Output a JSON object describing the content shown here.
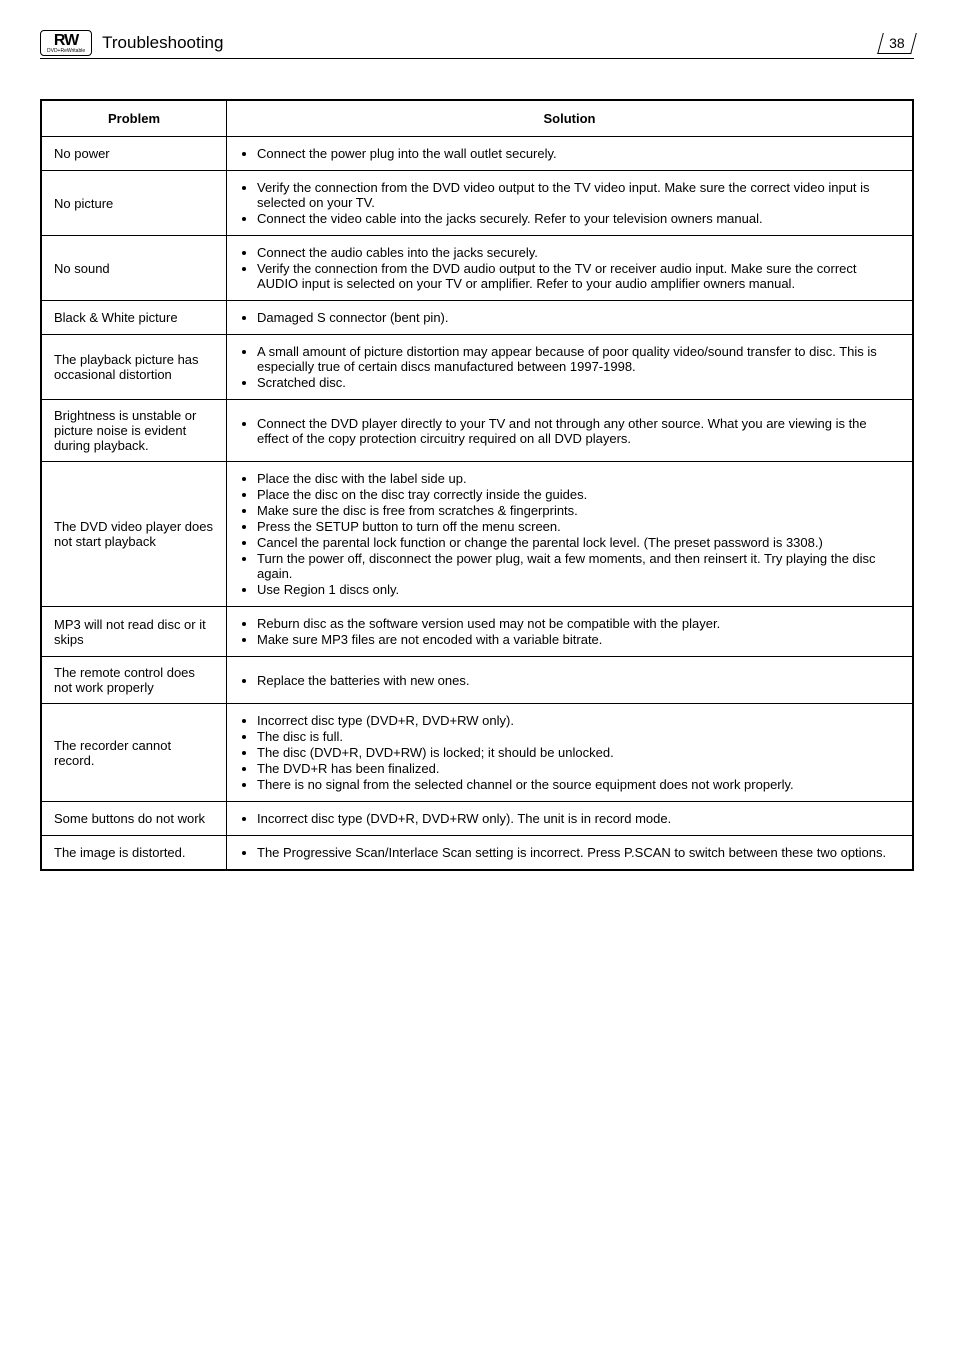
{
  "header": {
    "badge_top": "RW",
    "badge_sub": "DVD+ReWritable",
    "title": "Troubleshooting",
    "page": "38"
  },
  "table": {
    "col_problem": "Problem",
    "col_solution": "Solution",
    "rows": [
      {
        "problem": "No power",
        "solutions": [
          "Connect the power plug into the wall outlet securely."
        ]
      },
      {
        "problem": "No picture",
        "solutions": [
          "Verify the connection from the DVD video output to the TV video input. Make sure the correct video input is selected on your TV.",
          "Connect the video cable into the jacks securely. Refer to your television owners manual."
        ]
      },
      {
        "problem": "No sound",
        "solutions": [
          "Connect the audio cables into the jacks securely.",
          "Verify the connection from the DVD audio output to the TV or receiver audio input. Make sure the correct AUDIO input is selected on your TV or amplifier. Refer to your audio amplifier owners manual."
        ]
      },
      {
        "problem": "Black & White picture",
        "solutions": [
          "Damaged S connector (bent pin)."
        ]
      },
      {
        "problem": "The playback picture has occasional distortion",
        "solutions": [
          "A small amount of picture distortion may appear because of poor quality video/sound transfer to disc. This is especially true of certain discs manufactured between 1997-1998.",
          "Scratched disc."
        ]
      },
      {
        "problem": "Brightness is unstable or picture noise is evident during playback.",
        "solutions": [
          "Connect the DVD player directly to your TV and not through any other source. What you are viewing is the effect of the copy protection circuitry required on all DVD players."
        ]
      },
      {
        "problem": "The DVD video player does not start playback",
        "solutions": [
          "Place the disc with the label side up.",
          "Place the disc on the disc tray correctly inside the guides.",
          "Make sure the disc is free from scratches & fingerprints.",
          "Press the SETUP button to turn off the menu screen.",
          "Cancel the parental lock function or change the parental lock level. (The preset password is 3308.)",
          "Turn the power off, disconnect the power plug, wait a few moments, and then reinsert it. Try playing the disc again.",
          "Use Region 1 discs only."
        ]
      },
      {
        "problem": "MP3 will not read disc or it skips",
        "solutions": [
          "Reburn disc as the software version used may not be compatible with the player.",
          "Make sure MP3 files are not encoded with a variable bitrate."
        ]
      },
      {
        "problem": "The remote control does not work properly",
        "solutions": [
          "Replace the batteries with new ones."
        ]
      },
      {
        "problem": "The recorder cannot record.",
        "solutions": [
          "Incorrect disc type (DVD+R, DVD+RW only).",
          "The disc is full.",
          "The disc (DVD+R, DVD+RW) is locked; it should be unlocked.",
          "The DVD+R has been finalized.",
          "There is no signal from the selected channel or the source equipment does not work properly."
        ]
      },
      {
        "problem": "Some buttons do not work",
        "solutions": [
          "Incorrect disc type (DVD+R, DVD+RW only). The unit is in record mode."
        ]
      },
      {
        "problem": "The image is distorted.",
        "solutions": [
          "The Progressive Scan/Interlace Scan setting is incorrect. Press P.SCAN to switch between these two options."
        ]
      }
    ]
  }
}
